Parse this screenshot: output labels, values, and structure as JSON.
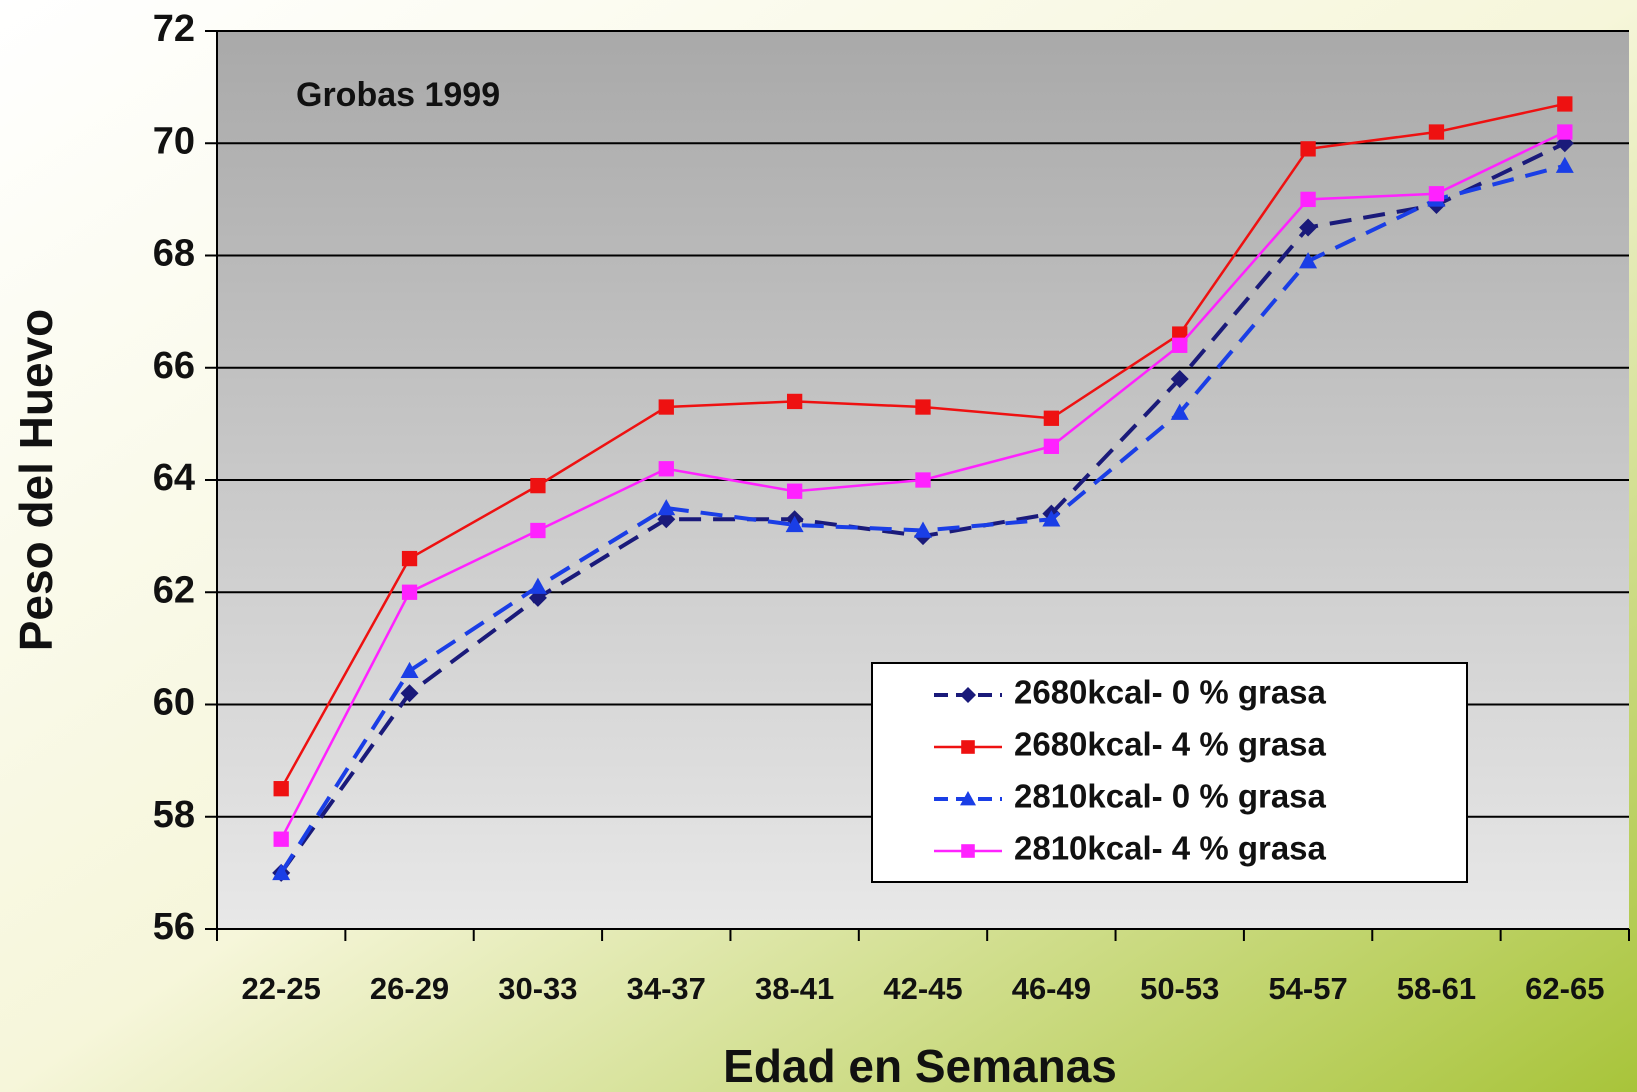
{
  "chart_data": {
    "type": "line",
    "annotation": "Grobas 1999",
    "xlabel": "Edad en Semanas",
    "ylabel": "Peso del Huevo",
    "categories": [
      "22-25",
      "26-29",
      "30-33",
      "34-37",
      "38-41",
      "42-45",
      "46-49",
      "50-53",
      "54-57",
      "58-61",
      "62-65"
    ],
    "series": [
      {
        "name": "2680kcal- 0 % grasa",
        "color": "#1a1a7a",
        "marker": "diamond",
        "linestyle": "dashed",
        "values": [
          57.0,
          60.2,
          61.9,
          63.3,
          63.3,
          63.0,
          63.4,
          65.8,
          68.5,
          68.9,
          70.0
        ]
      },
      {
        "name": "2680kcal- 4 % grasa",
        "color": "#ee1111",
        "marker": "square",
        "linestyle": "solid",
        "values": [
          58.5,
          62.6,
          63.9,
          65.3,
          65.4,
          65.3,
          65.1,
          66.6,
          69.9,
          70.2,
          70.7
        ]
      },
      {
        "name": "2810kcal- 0 % grasa",
        "color": "#1a3ee6",
        "marker": "triangle",
        "linestyle": "dashed",
        "values": [
          57.0,
          60.6,
          62.1,
          63.5,
          63.2,
          63.1,
          63.3,
          65.2,
          67.9,
          69.0,
          69.6
        ]
      },
      {
        "name": "2810kcal- 4 % grasa",
        "color": "#ff22ff",
        "marker": "square",
        "linestyle": "solid",
        "values": [
          57.6,
          62.0,
          63.1,
          64.2,
          63.8,
          64.0,
          64.6,
          66.4,
          69.0,
          69.1,
          70.2
        ]
      }
    ],
    "ylim": [
      56,
      72
    ],
    "yticks": [
      56,
      58,
      60,
      62,
      64,
      66,
      68,
      70,
      72
    ],
    "grid": true,
    "legend": "lower right"
  }
}
